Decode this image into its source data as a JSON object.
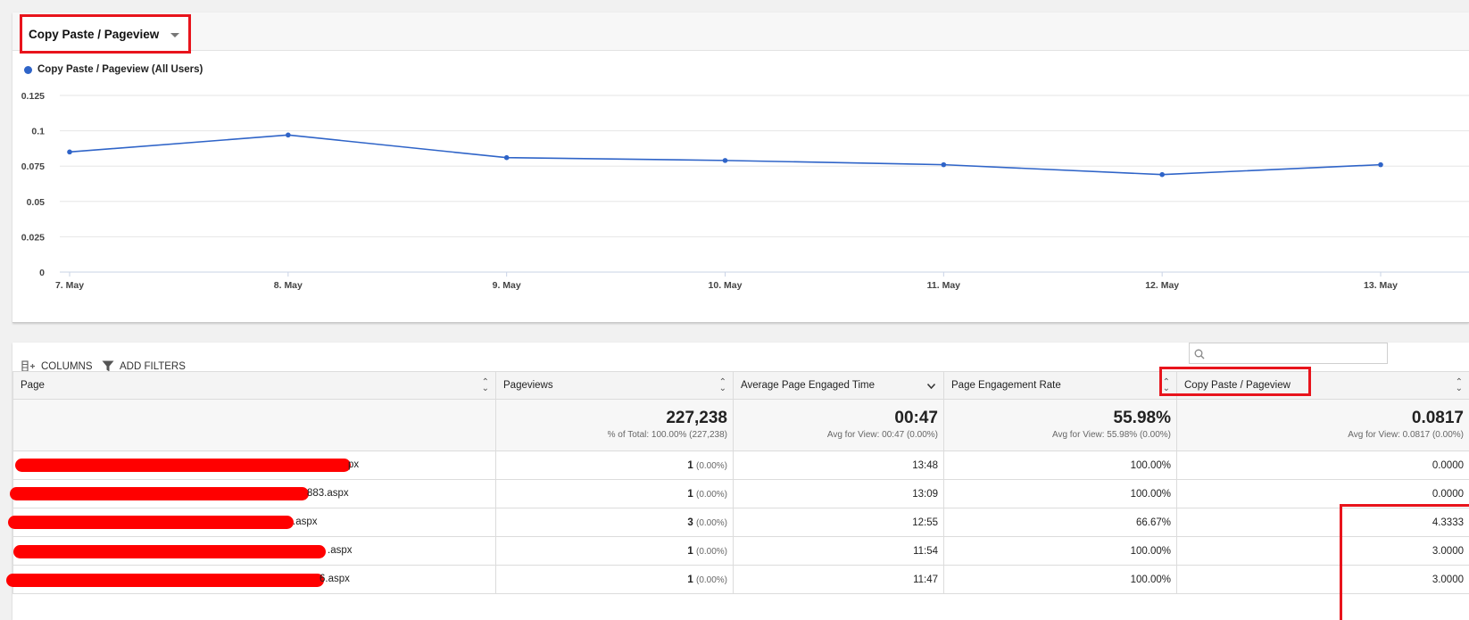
{
  "metric_selector": {
    "label": "Copy Paste / Pageview"
  },
  "legend": {
    "label": "Copy Paste / Pageview (All Users)"
  },
  "colors": {
    "series": "#2f64c8",
    "highlight": "#e8141c"
  },
  "chart_data": {
    "type": "line",
    "x": [
      "7. May",
      "8. May",
      "9. May",
      "10. May",
      "11. May",
      "12. May",
      "13. May"
    ],
    "series": [
      {
        "name": "Copy Paste / Pageview (All Users)",
        "values": [
          0.085,
          0.097,
          0.081,
          0.079,
          0.076,
          0.069,
          0.076
        ]
      }
    ],
    "y_ticks": [
      "0",
      "0.025",
      "0.05",
      "0.075",
      "0.1",
      "0.125"
    ],
    "ylim": [
      0,
      0.125
    ],
    "grid": true
  },
  "toolbar": {
    "columns_label": "COLUMNS",
    "filters_label": "ADD FILTERS",
    "search_placeholder": ""
  },
  "table": {
    "headers": [
      "Page",
      "Pageviews",
      "Average Page Engaged Time",
      "Page Engagement Rate",
      "Copy Paste / Pageview"
    ],
    "totals": {
      "pageviews": {
        "value": "227,238",
        "sub": "% of Total: 100.00% (227,238)"
      },
      "avg_time": {
        "value": "00:47",
        "sub": "Avg for View: 00:47 (0.00%)"
      },
      "engagement": {
        "value": "55.98%",
        "sub": "Avg for View: 55.98% (0.00%)"
      },
      "copy_paste": {
        "value": "0.0817",
        "sub": "Avg for View: 0.0817 (0.00%)"
      }
    },
    "rows": [
      {
        "page_suffix": "px",
        "pageviews": "1",
        "pct": "(0.00%)",
        "time": "13:48",
        "rate": "100.00%",
        "cpp": "0.0000"
      },
      {
        "page_suffix": "883.aspx",
        "pageviews": "1",
        "pct": "(0.00%)",
        "time": "13:09",
        "rate": "100.00%",
        "cpp": "0.0000"
      },
      {
        "page_suffix": ".aspx",
        "pageviews": "3",
        "pct": "(0.00%)",
        "time": "12:55",
        "rate": "66.67%",
        "cpp": "4.3333"
      },
      {
        "page_suffix": ".aspx",
        "pageviews": "1",
        "pct": "(0.00%)",
        "time": "11:54",
        "rate": "100.00%",
        "cpp": "3.0000"
      },
      {
        "page_suffix": "6.aspx",
        "pageviews": "1",
        "pct": "(0.00%)",
        "time": "11:47",
        "rate": "100.00%",
        "cpp": "3.0000"
      }
    ]
  }
}
